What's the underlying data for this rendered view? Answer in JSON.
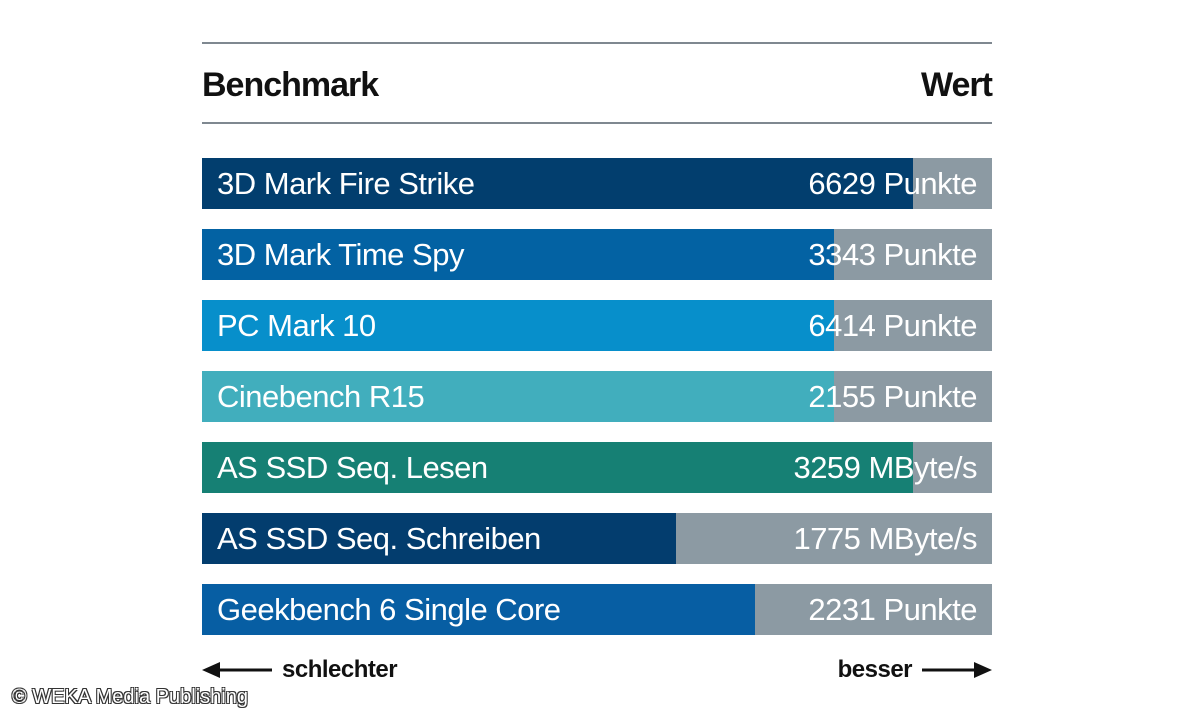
{
  "chart_data": {
    "type": "bar",
    "orientation": "horizontal",
    "header": {
      "left": "Benchmark",
      "right": "Wert"
    },
    "categories": [
      "3D Mark Fire Strike",
      "3D Mark Time Spy",
      "PC Mark 10",
      "Cinebench R15",
      "AS SSD Seq. Lesen",
      "AS SSD Seq. Schreiben",
      "Geekbench 6 Single Core"
    ],
    "value_labels": [
      "6629 Punkte",
      "3343 Punkte",
      "6414 Punkte",
      "2155 Punkte",
      "3259 MByte/s",
      "1775 MByte/s",
      "2231 Punkte"
    ],
    "values": [
      6629,
      3343,
      6414,
      2155,
      3259,
      1775,
      2231
    ],
    "relative_fill": [
      0.9,
      0.8,
      0.8,
      0.8,
      0.9,
      0.6,
      0.7
    ],
    "colors": [
      "#023e6e",
      "#0362a3",
      "#078fcb",
      "#41aebd",
      "#168074",
      "#033d6e",
      "#075ea3"
    ],
    "track_color": "#8c9aa3",
    "footer": {
      "worse": "schlechter",
      "better": "besser"
    }
  },
  "copyright": "© WEKA Media Publishing"
}
